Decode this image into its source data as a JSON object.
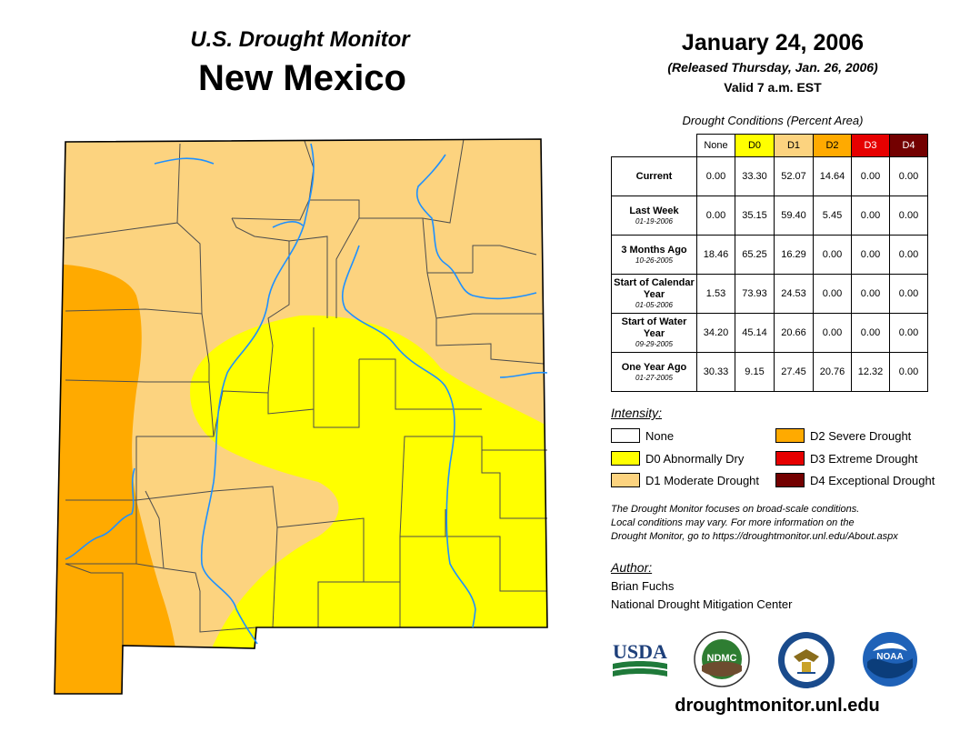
{
  "header": {
    "subtitle": "U.S. Drought Monitor",
    "state": "New Mexico",
    "date": "January 24, 2006",
    "released": "(Released Thursday, Jan. 26, 2006)",
    "valid": "Valid 7 a.m. EST"
  },
  "table": {
    "title": "Drought Conditions (Percent Area)",
    "columns": [
      "None",
      "D0",
      "D1",
      "D2",
      "D3",
      "D4"
    ],
    "column_colors": [
      "#ffffff",
      "#ffff00",
      "#fcd37f",
      "#ffaa00",
      "#e60000",
      "#730000"
    ],
    "rows": [
      {
        "label": "Current",
        "date": "",
        "values": [
          "0.00",
          "33.30",
          "52.07",
          "14.64",
          "0.00",
          "0.00"
        ]
      },
      {
        "label": "Last Week",
        "date": "01-19-2006",
        "values": [
          "0.00",
          "35.15",
          "59.40",
          "5.45",
          "0.00",
          "0.00"
        ]
      },
      {
        "label": "3 Months Ago",
        "date": "10-26-2005",
        "values": [
          "18.46",
          "65.25",
          "16.29",
          "0.00",
          "0.00",
          "0.00"
        ]
      },
      {
        "label": "Start of Calendar Year",
        "date": "01-05-2006",
        "values": [
          "1.53",
          "73.93",
          "24.53",
          "0.00",
          "0.00",
          "0.00"
        ]
      },
      {
        "label": "Start of Water Year",
        "date": "09-29-2005",
        "values": [
          "34.20",
          "45.14",
          "20.66",
          "0.00",
          "0.00",
          "0.00"
        ]
      },
      {
        "label": "One Year Ago",
        "date": "01-27-2005",
        "values": [
          "30.33",
          "9.15",
          "27.45",
          "20.76",
          "12.32",
          "0.00"
        ]
      }
    ]
  },
  "legend": {
    "title": "Intensity:",
    "items": [
      {
        "label": "None",
        "color": "#ffffff"
      },
      {
        "label": "D0 Abnormally Dry",
        "color": "#ffff00"
      },
      {
        "label": "D1 Moderate Drought",
        "color": "#fcd37f"
      },
      {
        "label": "D2 Severe Drought",
        "color": "#ffaa00"
      },
      {
        "label": "D3 Extreme Drought",
        "color": "#e60000"
      },
      {
        "label": "D4 Exceptional Drought",
        "color": "#730000"
      }
    ]
  },
  "note": {
    "line1": "The Drought Monitor focuses on broad-scale conditions.",
    "line2": "Local conditions may vary. For more information on the",
    "line3": "Drought Monitor, go to https://droughtmonitor.unl.edu/About.aspx"
  },
  "author": {
    "title": "Author:",
    "name": "Brian Fuchs",
    "org": "National Drought Mitigation Center"
  },
  "logos": {
    "usda": "USDA",
    "ndmc": "NDMC",
    "noaa": "NOAA",
    "doc_icon": "commerce-eagle-icon"
  },
  "website": "droughtmonitor.unl.edu",
  "colors": {
    "river": "#1e90ff",
    "county_border": "#4d4d4d"
  }
}
